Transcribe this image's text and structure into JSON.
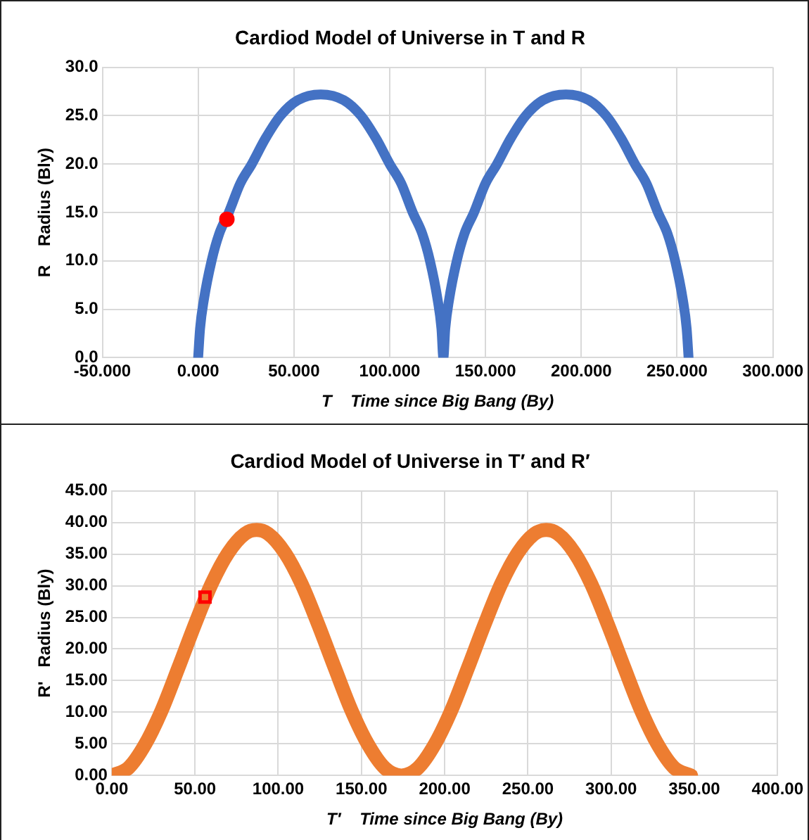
{
  "chart_data": [
    {
      "type": "line",
      "title": "Cardiod Model of Universe in T and R",
      "xlabel": "T    Time since Big Bang (By)",
      "ylabel": "R    Radius (Bly)",
      "marker": "none",
      "grid": true,
      "legend": false,
      "xlim": [
        -50,
        300
      ],
      "xticks": [
        {
          "value": -50,
          "label": "-50.000"
        },
        {
          "value": 0,
          "label": "0.000"
        },
        {
          "value": 50,
          "label": "50.000"
        },
        {
          "value": 100,
          "label": "100.000"
        },
        {
          "value": 150,
          "label": "150.000"
        },
        {
          "value": 200,
          "label": "200.000"
        },
        {
          "value": 250,
          "label": "250.000"
        },
        {
          "value": 300,
          "label": "300.000"
        }
      ],
      "ylim": [
        0,
        30
      ],
      "yticks": [
        {
          "value": 0,
          "label": "0.0"
        },
        {
          "value": 5,
          "label": "5.0"
        },
        {
          "value": 10,
          "label": "10.0"
        },
        {
          "value": 15,
          "label": "15.0"
        },
        {
          "value": 20,
          "label": "20.0"
        },
        {
          "value": 25,
          "label": "25.0"
        },
        {
          "value": 30,
          "label": "30.0"
        }
      ],
      "series": [
        {
          "color": "#4472c4",
          "x": [
            0,
            1,
            3,
            7,
            11,
            16,
            22,
            28,
            35,
            43,
            52,
            64,
            76,
            85,
            93,
            100,
            106,
            112,
            117,
            121,
            125,
            127,
            128,
            129,
            131,
            135,
            139,
            144,
            150,
            156,
            163,
            171,
            180,
            192,
            204,
            213,
            221,
            228,
            234,
            240,
            245,
            249,
            253,
            255,
            256
          ],
          "values": [
            0,
            3,
            6,
            10,
            12.8,
            15,
            18,
            20,
            22.6,
            25,
            26.6,
            27.2,
            26.6,
            25,
            22.6,
            20,
            18,
            15,
            12.8,
            10,
            6,
            3,
            0,
            3,
            6,
            10,
            12.8,
            15,
            18,
            20,
            22.6,
            25,
            26.6,
            27.2,
            26.6,
            25,
            22.6,
            20,
            18,
            15,
            12.8,
            10,
            6,
            3,
            0
          ]
        },
        {
          "type": "scatter",
          "color": "#ff0000",
          "marker": "circle",
          "x": [
            15
          ],
          "values": [
            14.3
          ]
        }
      ]
    },
    {
      "type": "line",
      "title": "Cardiod Model of Universe in T′ and R′",
      "xlabel": "T′    Time since Big Bang (By)",
      "ylabel": "R'   Radius (Bly)",
      "marker": "none",
      "grid": true,
      "legend": false,
      "xlim": [
        0,
        400
      ],
      "xticks": [
        {
          "value": 0,
          "label": "0.00"
        },
        {
          "value": 50,
          "label": "50.00"
        },
        {
          "value": 100,
          "label": "100.00"
        },
        {
          "value": 150,
          "label": "150.00"
        },
        {
          "value": 200,
          "label": "200.00"
        },
        {
          "value": 250,
          "label": "250.00"
        },
        {
          "value": 300,
          "label": "300.00"
        },
        {
          "value": 350,
          "label": "350.00"
        },
        {
          "value": 400,
          "label": "400.00"
        }
      ],
      "ylim": [
        0,
        45
      ],
      "yticks": [
        {
          "value": 0,
          "label": "0.00"
        },
        {
          "value": 5,
          "label": "5.00"
        },
        {
          "value": 10,
          "label": "10.00"
        },
        {
          "value": 15,
          "label": "15.00"
        },
        {
          "value": 20,
          "label": "20.00"
        },
        {
          "value": 25,
          "label": "25.00"
        },
        {
          "value": 30,
          "label": "30.00"
        },
        {
          "value": 35,
          "label": "35.00"
        },
        {
          "value": 40,
          "label": "40.00"
        },
        {
          "value": 45,
          "label": "45.00"
        }
      ],
      "series": [
        {
          "color": "#ed7d31",
          "x": [
            0,
            10,
            20,
            30,
            40,
            50,
            60,
            70,
            80,
            87,
            94,
            104,
            114,
            124,
            134,
            144,
            154,
            164,
            174,
            184,
            194,
            204,
            214,
            224,
            234,
            244,
            254,
            261,
            268,
            278,
            288,
            298,
            308,
            318,
            328,
            338,
            348
          ],
          "values": [
            0,
            1.2,
            4.9,
            10.3,
            17,
            23.9,
            30.3,
            35.2,
            38.2,
            38.8,
            38.2,
            35.2,
            30.3,
            23.9,
            17,
            10.3,
            4.9,
            1.2,
            0,
            1.2,
            4.9,
            10.3,
            17,
            23.9,
            30.3,
            35.2,
            38.2,
            38.8,
            38.2,
            35.2,
            30.3,
            23.9,
            17,
            10.3,
            4.9,
            1.2,
            0
          ]
        },
        {
          "type": "scatter",
          "color": "#ff0000",
          "marker": "square",
          "x": [
            56
          ],
          "values": [
            28.2
          ]
        }
      ]
    }
  ]
}
